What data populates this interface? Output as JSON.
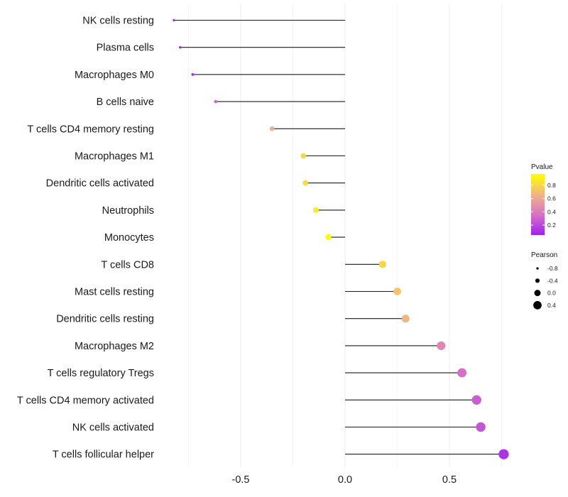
{
  "chart_data": {
    "type": "lollipop",
    "title": "",
    "xlabel": "",
    "ylabel": "",
    "xlim": [
      -0.87,
      0.8
    ],
    "x_ticks": [
      -0.5,
      0.0,
      0.5
    ],
    "x_tick_labels": [
      "-0.5",
      "0.0",
      "0.5"
    ],
    "categories": [
      "NK cells resting",
      "Plasma cells",
      "Macrophages M0",
      "B cells naive",
      "T cells CD4 memory resting",
      "Macrophages M1",
      "Dendritic cells activated",
      "Neutrophils",
      "Monocytes",
      "T cells CD8",
      "Mast cells resting",
      "Dendritic cells resting",
      "Macrophages M2",
      "T cells regulatory  Tregs ",
      "T cells CD4 memory activated",
      "NK cells activated",
      "T cells follicular helper"
    ],
    "pearson": [
      -0.82,
      -0.79,
      -0.73,
      -0.62,
      -0.35,
      -0.2,
      -0.19,
      -0.14,
      -0.08,
      0.18,
      0.25,
      0.29,
      0.46,
      0.56,
      0.63,
      0.65,
      0.76
    ],
    "pvalue": [
      0.06,
      0.08,
      0.1,
      0.3,
      0.62,
      0.8,
      0.82,
      0.88,
      0.96,
      0.8,
      0.72,
      0.66,
      0.45,
      0.35,
      0.28,
      0.25,
      0.12
    ],
    "legend": {
      "pvalue": {
        "title": "Pvalue",
        "ticks": [
          0.2,
          0.4,
          0.6,
          0.8
        ],
        "tick_labels": [
          "0.2",
          "0.4",
          "0.6",
          "0.8"
        ],
        "range": [
          0.05,
          0.97
        ],
        "low_color": "#a020f0",
        "high_color": "#ffff00"
      },
      "pearson": {
        "title": "Pearson",
        "values": [
          -0.8,
          -0.4,
          0.0,
          0.4
        ],
        "labels": [
          "-0.8",
          "-0.4",
          "0.0",
          "0.4"
        ]
      },
      "placement": "right"
    }
  }
}
